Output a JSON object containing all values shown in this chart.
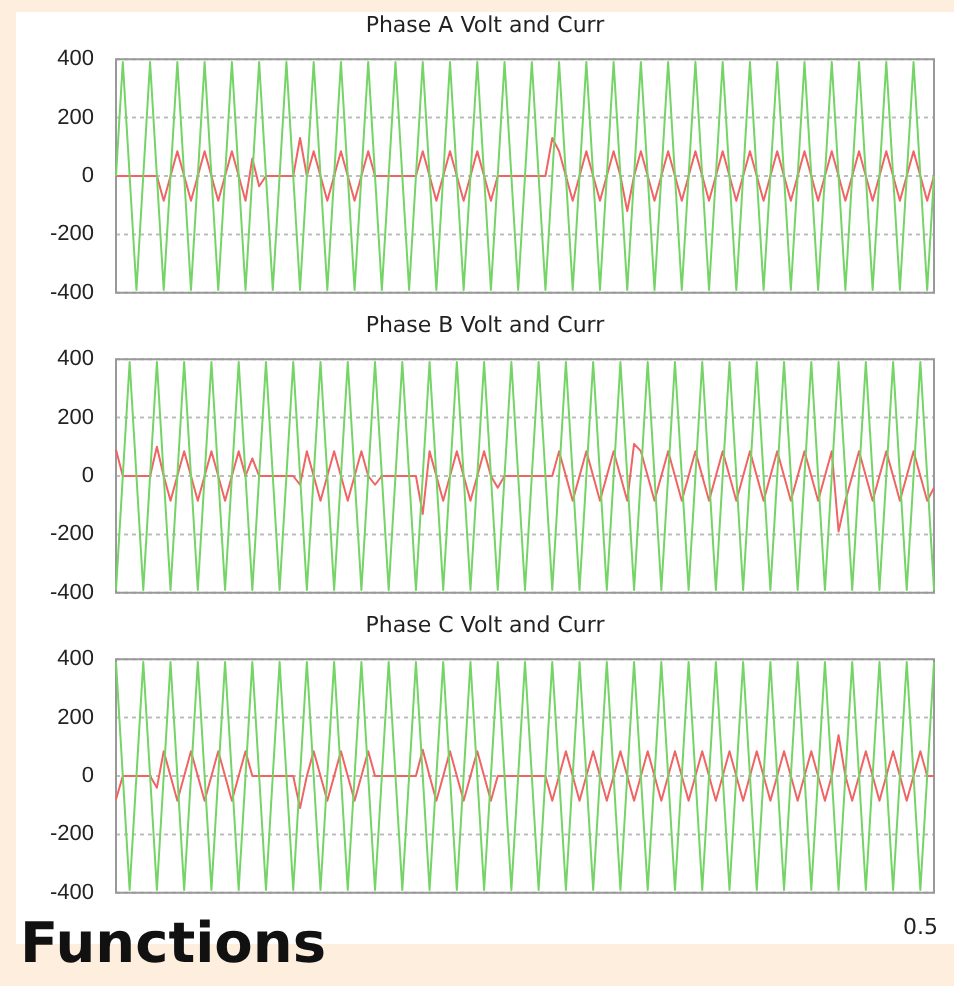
{
  "chart_data": [
    {
      "type": "line",
      "title": "Phase A Volt and Curr",
      "categories": [
        null,
        null,
        null,
        null,
        null,
        null,
        null,
        null,
        null,
        null,
        null,
        null,
        null,
        null,
        null,
        null,
        null,
        null,
        null,
        null,
        null,
        null,
        null,
        null,
        null,
        null,
        null,
        null,
        null,
        null,
        null,
        null,
        null,
        null,
        null,
        null,
        null,
        null,
        null,
        null,
        null,
        null,
        null,
        null,
        null,
        null,
        null,
        null,
        null,
        null,
        null,
        null,
        null,
        null,
        null,
        null,
        null,
        null,
        null,
        null,
        null,
        null,
        null,
        null,
        null,
        null,
        null,
        null,
        null,
        null,
        null,
        null,
        null,
        null,
        null,
        null,
        null,
        null,
        null,
        null,
        null,
        null,
        null,
        null,
        null,
        null,
        null,
        null,
        null,
        null,
        null,
        null,
        null,
        null,
        null,
        null,
        null,
        null,
        null,
        null,
        null,
        null,
        null,
        null,
        null,
        null,
        null,
        null,
        null,
        null,
        null,
        null,
        null,
        null,
        null,
        null,
        null,
        null,
        null,
        null,
        null
      ],
      "ylim": [
        -400,
        400
      ],
      "yticks": [
        -400,
        -200,
        0,
        200,
        400
      ],
      "grid": "y",
      "tick_labels": "y",
      "series": [
        {
          "color": "#74d466",
          "values": [
            0,
            390,
            0,
            -390,
            0,
            390,
            0,
            -390,
            0,
            390,
            0,
            -390,
            0,
            390,
            0,
            -390,
            0,
            390,
            0,
            -390,
            0,
            390,
            0,
            -390,
            0,
            390,
            0,
            -390,
            0,
            390,
            0,
            -390,
            0,
            390,
            0,
            -390,
            0,
            390,
            0,
            -390,
            0,
            390,
            0,
            -390,
            0,
            390,
            0,
            -390,
            0,
            390,
            0,
            -390,
            0,
            390,
            0,
            -390,
            0,
            390,
            0,
            -390,
            0,
            390,
            0,
            -390,
            0,
            390,
            0,
            -390,
            0,
            390,
            0,
            -390,
            0,
            390,
            0,
            -390,
            0,
            390,
            0,
            -390,
            0,
            390,
            0,
            -390,
            0,
            390,
            0,
            -390,
            0,
            390,
            0,
            -390,
            0,
            390,
            0,
            -390,
            0,
            390,
            0,
            -390,
            0,
            390,
            0,
            -390,
            0,
            390,
            0,
            -390,
            0,
            390,
            0,
            -390,
            0,
            390,
            0,
            -390,
            0,
            390,
            0,
            -390,
            0
          ]
        },
        {
          "color": "#f06464",
          "values": [
            0,
            0,
            0,
            0,
            0,
            0,
            0,
            -85,
            0,
            85,
            0,
            -85,
            0,
            85,
            0,
            -85,
            0,
            85,
            0,
            -85,
            60,
            -35,
            0,
            0,
            0,
            0,
            0,
            130,
            0,
            85,
            0,
            -85,
            0,
            85,
            0,
            -85,
            0,
            85,
            0,
            0,
            0,
            0,
            0,
            0,
            0,
            85,
            0,
            -85,
            0,
            85,
            0,
            -85,
            0,
            85,
            0,
            -85,
            0,
            0,
            0,
            0,
            0,
            0,
            0,
            0,
            130,
            85,
            0,
            -85,
            0,
            85,
            0,
            -85,
            0,
            85,
            0,
            -120,
            0,
            85,
            0,
            -85,
            0,
            85,
            0,
            -85,
            0,
            85,
            0,
            -85,
            0,
            85,
            0,
            -85,
            0,
            85,
            0,
            -85,
            0,
            85,
            0,
            -85,
            0,
            85,
            0,
            -85,
            0,
            85,
            0,
            -85,
            0,
            85,
            0,
            -85,
            0,
            85,
            0,
            -85,
            0,
            85,
            0,
            -85,
            0
          ]
        }
      ]
    },
    {
      "type": "line",
      "title": "Phase B Volt and Curr",
      "categories": [
        null,
        null,
        null,
        null,
        null,
        null,
        null,
        null,
        null,
        null,
        null,
        null,
        null,
        null,
        null,
        null,
        null,
        null,
        null,
        null,
        null,
        null,
        null,
        null,
        null,
        null,
        null,
        null,
        null,
        null,
        null,
        null,
        null,
        null,
        null,
        null,
        null,
        null,
        null,
        null,
        null,
        null,
        null,
        null,
        null,
        null,
        null,
        null,
        null,
        null,
        null,
        null,
        null,
        null,
        null,
        null,
        null,
        null,
        null,
        null,
        null,
        null,
        null,
        null,
        null,
        null,
        null,
        null,
        null,
        null,
        null,
        null,
        null,
        null,
        null,
        null,
        null,
        null,
        null,
        null,
        null,
        null,
        null,
        null,
        null,
        null,
        null,
        null,
        null,
        null,
        null,
        null,
        null,
        null,
        null,
        null,
        null,
        null,
        null,
        null,
        null,
        null,
        null,
        null,
        null,
        null,
        null,
        null,
        null,
        null,
        null,
        null,
        null,
        null,
        null,
        null,
        null,
        null,
        null,
        null,
        null
      ],
      "ylim": [
        -400,
        400
      ],
      "yticks": [
        -400,
        -200,
        0,
        200,
        400
      ],
      "grid": "y",
      "tick_labels": "y",
      "series": [
        {
          "color": "#74d466",
          "values": [
            -390,
            0,
            390,
            0,
            -390,
            0,
            390,
            0,
            -390,
            0,
            390,
            0,
            -390,
            0,
            390,
            0,
            -390,
            0,
            390,
            0,
            -390,
            0,
            390,
            0,
            -390,
            0,
            390,
            0,
            -390,
            0,
            390,
            0,
            -390,
            0,
            390,
            0,
            -390,
            0,
            390,
            0,
            -390,
            0,
            390,
            0,
            -390,
            0,
            390,
            0,
            -390,
            0,
            390,
            0,
            -390,
            0,
            390,
            0,
            -390,
            0,
            390,
            0,
            -390,
            0,
            390,
            0,
            -390,
            0,
            390,
            0,
            -390,
            0,
            390,
            0,
            -390,
            0,
            390,
            0,
            -390,
            0,
            390,
            0,
            -390,
            0,
            390,
            0,
            -390,
            0,
            390,
            0,
            -390,
            0,
            390,
            0,
            -390,
            0,
            390,
            0,
            -390,
            0,
            390,
            0,
            -390,
            0,
            390,
            0,
            -390,
            0,
            390,
            0,
            -390,
            0,
            390,
            0,
            -390,
            0,
            390,
            0,
            -390,
            0,
            390,
            0,
            -390
          ]
        },
        {
          "color": "#f06464",
          "values": [
            90,
            0,
            0,
            0,
            0,
            0,
            100,
            0,
            -85,
            0,
            85,
            0,
            -85,
            0,
            85,
            0,
            -85,
            0,
            85,
            0,
            60,
            0,
            0,
            0,
            0,
            0,
            0,
            -30,
            85,
            0,
            -85,
            0,
            85,
            0,
            -85,
            0,
            85,
            0,
            -30,
            0,
            0,
            0,
            0,
            0,
            0,
            -130,
            85,
            0,
            -85,
            0,
            85,
            0,
            -85,
            0,
            85,
            0,
            -40,
            0,
            0,
            0,
            0,
            0,
            0,
            0,
            0,
            85,
            0,
            -85,
            0,
            85,
            0,
            -85,
            0,
            85,
            0,
            -85,
            110,
            85,
            0,
            -85,
            0,
            85,
            0,
            -85,
            0,
            85,
            0,
            -85,
            0,
            85,
            0,
            -85,
            0,
            85,
            0,
            -85,
            0,
            85,
            0,
            -85,
            0,
            85,
            0,
            -85,
            0,
            85,
            -190,
            -85,
            0,
            85,
            0,
            -85,
            0,
            85,
            0,
            -85,
            0,
            85,
            0,
            -85,
            -40
          ]
        }
      ]
    },
    {
      "type": "line",
      "title": "Phase C Volt and Curr",
      "categories": [
        null,
        null,
        null,
        null,
        null,
        null,
        null,
        null,
        null,
        null,
        null,
        null,
        null,
        null,
        null,
        null,
        null,
        null,
        null,
        null,
        null,
        null,
        null,
        null,
        null,
        null,
        null,
        null,
        null,
        null,
        null,
        null,
        null,
        null,
        null,
        null,
        null,
        null,
        null,
        null,
        null,
        null,
        null,
        null,
        null,
        null,
        null,
        null,
        null,
        null,
        null,
        null,
        null,
        null,
        null,
        null,
        null,
        null,
        null,
        null,
        null,
        null,
        null,
        null,
        null,
        null,
        null,
        null,
        null,
        null,
        null,
        null,
        null,
        null,
        null,
        null,
        null,
        null,
        null,
        null,
        null,
        null,
        null,
        null,
        null,
        null,
        null,
        null,
        null,
        null,
        null,
        null,
        null,
        null,
        null,
        null,
        null,
        null,
        null,
        null,
        null,
        null,
        null,
        null,
        null,
        null,
        null,
        null,
        null,
        null,
        null,
        null,
        null,
        null,
        null,
        null,
        null,
        null,
        null,
        null,
        null
      ],
      "ylim": [
        -400,
        400
      ],
      "yticks": [
        -400,
        -200,
        0,
        200,
        400
      ],
      "grid": "y",
      "tick_labels": "y",
      "annotations": [
        "0.5",
        "Functions"
      ],
      "series": [
        {
          "color": "#74d466",
          "values": [
            390,
            0,
            -390,
            0,
            390,
            0,
            -390,
            0,
            390,
            0,
            -390,
            0,
            390,
            0,
            -390,
            0,
            390,
            0,
            -390,
            0,
            390,
            0,
            -390,
            0,
            390,
            0,
            -390,
            0,
            390,
            0,
            -390,
            0,
            390,
            0,
            -390,
            0,
            390,
            0,
            -390,
            0,
            390,
            0,
            -390,
            0,
            390,
            0,
            -390,
            0,
            390,
            0,
            -390,
            0,
            390,
            0,
            -390,
            0,
            390,
            0,
            -390,
            0,
            390,
            0,
            -390,
            0,
            390,
            0,
            -390,
            0,
            390,
            0,
            -390,
            0,
            390,
            0,
            -390,
            0,
            390,
            0,
            -390,
            0,
            390,
            0,
            -390,
            0,
            390,
            0,
            -390,
            0,
            390,
            0,
            -390,
            0,
            390,
            0,
            -390,
            0,
            390,
            0,
            -390,
            0,
            390,
            0,
            -390,
            0,
            390,
            0,
            -390,
            0,
            390,
            0,
            -390,
            0,
            390,
            0,
            -390,
            0,
            390,
            0,
            -390,
            0,
            390
          ]
        },
        {
          "color": "#f06464",
          "values": [
            -80,
            0,
            0,
            0,
            0,
            0,
            -40,
            85,
            0,
            -85,
            0,
            85,
            0,
            -85,
            0,
            85,
            0,
            -85,
            0,
            85,
            0,
            0,
            0,
            0,
            0,
            0,
            0,
            -110,
            0,
            85,
            0,
            -85,
            0,
            85,
            0,
            -85,
            0,
            85,
            0,
            0,
            0,
            0,
            0,
            0,
            0,
            90,
            0,
            -85,
            0,
            85,
            0,
            -85,
            0,
            85,
            0,
            -85,
            0,
            0,
            0,
            0,
            0,
            0,
            0,
            0,
            -85,
            0,
            85,
            0,
            -85,
            0,
            85,
            0,
            -85,
            0,
            85,
            0,
            -85,
            0,
            85,
            0,
            -85,
            0,
            85,
            0,
            -85,
            0,
            85,
            0,
            -85,
            0,
            85,
            0,
            -85,
            0,
            85,
            0,
            -85,
            0,
            85,
            0,
            -85,
            0,
            85,
            0,
            -85,
            0,
            140,
            0,
            -85,
            0,
            85,
            0,
            -85,
            0,
            85,
            0,
            -85,
            0,
            85,
            0,
            0
          ]
        }
      ]
    }
  ]
}
